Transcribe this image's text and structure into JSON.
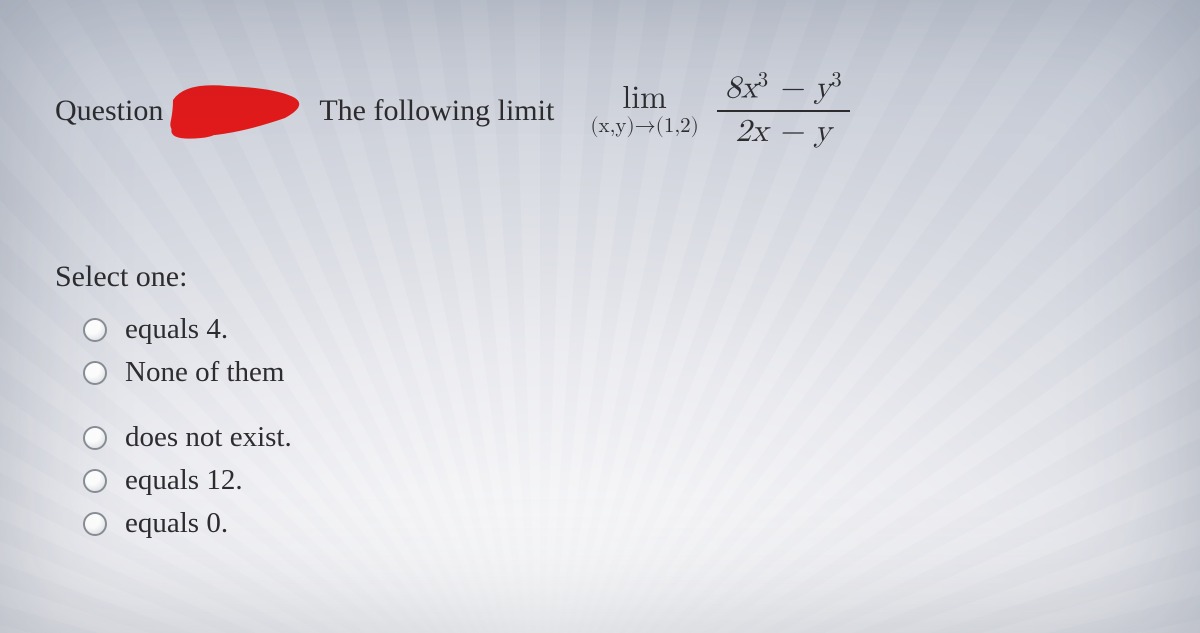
{
  "question": {
    "label": "Question",
    "prompt": "The following limit",
    "limit": {
      "word": "lim",
      "subscript": "(x,y)→(1,2)",
      "numerator_html": "8<span class='rm'></span>x<sup>3</sup> − y<sup>3</sup>",
      "denominator_html": "2x − y"
    }
  },
  "select_label": "Select one:",
  "options": [
    {
      "text": "equals 4.",
      "gap_before": false
    },
    {
      "text": "None of them",
      "gap_before": false
    },
    {
      "text": "does not exist.",
      "gap_before": true
    },
    {
      "text": "equals 12.",
      "gap_before": false
    },
    {
      "text": "equals 0.",
      "gap_before": false
    }
  ],
  "colors": {
    "text": "#2d2d30",
    "redaction": "#e11b1b",
    "radio_border": "#8a8f96"
  }
}
